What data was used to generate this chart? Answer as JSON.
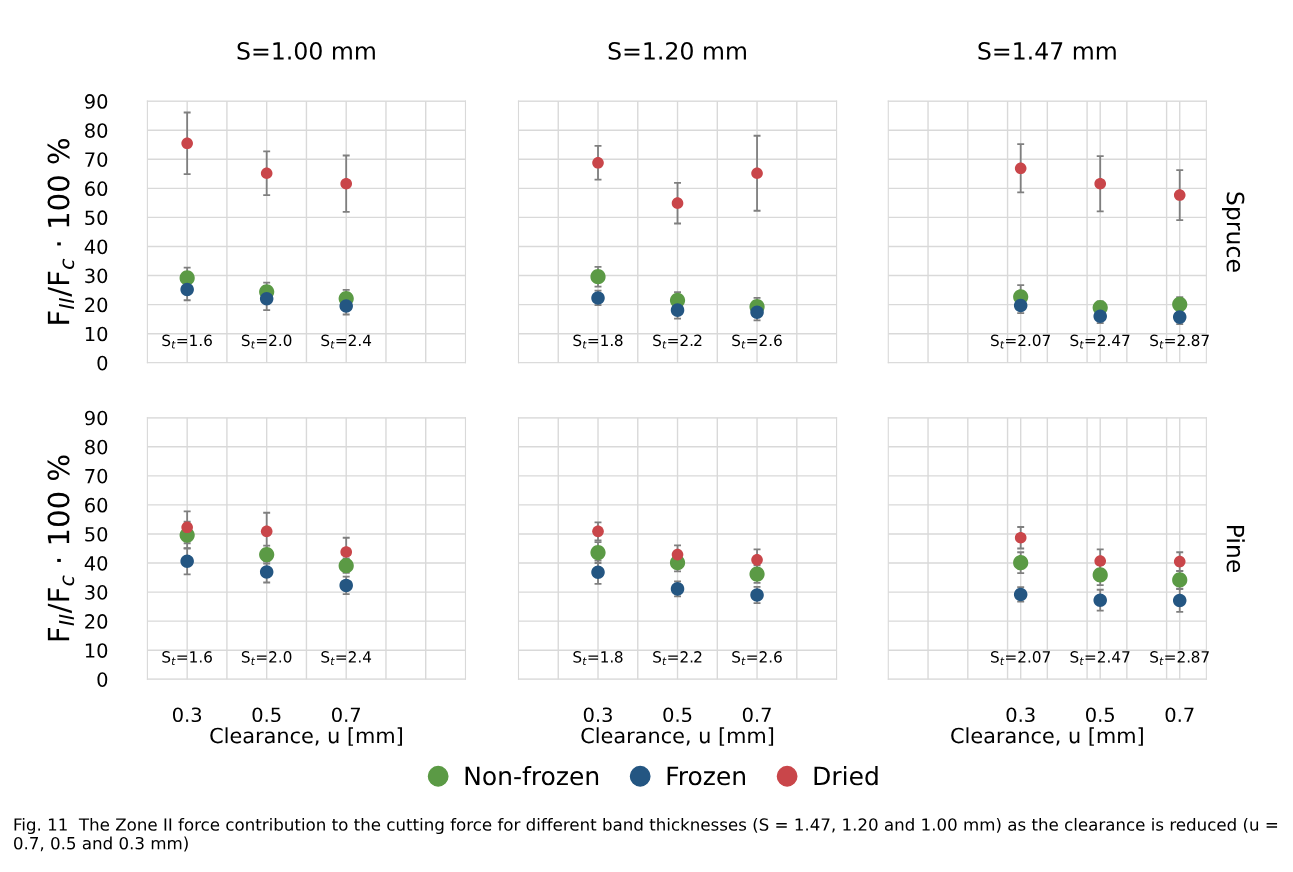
{
  "chart_data": [
    {
      "type": "scatter",
      "title": "S=1.00 mm",
      "ylabel": "F$_{II}$/F$_{c}$ · 100 %",
      "x": [
        0.3,
        0.5,
        0.7
      ],
      "xlim": [
        0.2,
        1.0
      ],
      "xticks": [
        0.3,
        {
          "value": 0.4,
          "label": null
        },
        0.5,
        {
          "value": 0.6,
          "label": null
        },
        0.7,
        {
          "value": 0.8,
          "label": null
        },
        {
          "value": 0.9,
          "label": null
        }
      ],
      "ylim": [
        0,
        90
      ],
      "yticks": [
        0,
        10,
        20,
        30,
        40,
        50,
        60,
        70,
        80,
        90
      ],
      "grid": true,
      "marker": "circle",
      "tick_labels": "y",
      "legend": "bottom",
      "series": [
        {
          "name": "Non-frozen",
          "color": "#5b9a45",
          "values": [
            29.2,
            24.4,
            22.1
          ],
          "errors": [
            3.5,
            3.2,
            3.0
          ]
        },
        {
          "name": "Frozen",
          "color": "#245682",
          "values": [
            25.2,
            22.0,
            19.5
          ],
          "errors": [
            3.7,
            3.9,
            2.9
          ]
        },
        {
          "name": "Dried",
          "color": "#c9464a",
          "values": [
            75.5,
            65.2,
            61.6
          ],
          "errors": [
            10.6,
            7.5,
            9.7
          ]
        }
      ],
      "annotations": [
        "S$_{t}$=1.6",
        "S$_{t}$=2.0",
        "S$_{t}$=2.4"
      ]
    },
    {
      "type": "scatter",
      "title": "S=1.20 mm",
      "x": [
        0.3,
        0.5,
        0.7
      ],
      "xlim": [
        0.1,
        0.9
      ],
      "xticks": [
        {
          "value": 0.2,
          "label": null
        },
        0.3,
        {
          "value": 0.4,
          "label": null
        },
        0.5,
        {
          "value": 0.6,
          "label": null
        },
        0.7,
        {
          "value": 0.8,
          "label": null
        }
      ],
      "ylim": [
        0,
        90
      ],
      "yticks": [
        0,
        10,
        20,
        30,
        40,
        50,
        60,
        70,
        80,
        90
      ],
      "grid": true,
      "marker": "circle",
      "tick_labels": false,
      "legend": "bottom",
      "series": [
        {
          "name": "Non-frozen",
          "color": "#5b9a45",
          "values": [
            29.6,
            21.5,
            19.3
          ],
          "errors": [
            3.4,
            2.8,
            3.0
          ]
        },
        {
          "name": "Frozen",
          "color": "#245682",
          "values": [
            22.3,
            18.1,
            17.4
          ],
          "errors": [
            2.5,
            2.9,
            2.8
          ]
        },
        {
          "name": "Dried",
          "color": "#c9464a",
          "values": [
            68.8,
            54.9,
            65.2
          ],
          "errors": [
            5.8,
            7.0,
            12.9
          ]
        }
      ],
      "annotations": [
        "S$_{t}$=1.8",
        "S$_{t}$=2.2",
        "S$_{t}$=2.6"
      ]
    },
    {
      "type": "scatter",
      "title": "S=1.47 mm",
      "y2label": "Spruce",
      "x": [
        0.3,
        0.5,
        0.7
      ],
      "xlim": [
        -0.033,
        0.767
      ],
      "xticks": [
        {
          "value": 0.067,
          "label": null
        },
        {
          "value": 0.167,
          "label": null
        },
        {
          "value": 0.267,
          "label": null
        },
        0.3,
        {
          "value": 0.367,
          "label": null
        },
        {
          "value": 0.467,
          "label": null
        },
        0.5,
        {
          "value": 0.567,
          "label": null
        },
        {
          "value": 0.667,
          "label": null
        },
        0.7
      ],
      "ylim": [
        0,
        90
      ],
      "yticks": [
        0,
        10,
        20,
        30,
        40,
        50,
        60,
        70,
        80,
        90
      ],
      "grid": true,
      "marker": "circle",
      "tick_labels": false,
      "legend": "bottom",
      "series": [
        {
          "name": "Non-frozen",
          "color": "#5b9a45",
          "values": [
            22.7,
            19.0,
            20.1
          ],
          "errors": [
            4.0,
            2.1,
            2.5
          ]
        },
        {
          "name": "Frozen",
          "color": "#245682",
          "values": [
            19.7,
            16.0,
            15.7
          ],
          "errors": [
            2.6,
            2.4,
            2.4
          ]
        },
        {
          "name": "Dried",
          "color": "#c9464a",
          "values": [
            66.9,
            61.6,
            57.7
          ],
          "errors": [
            8.3,
            9.5,
            8.6
          ]
        }
      ],
      "annotations": [
        "S$_{t}$=2.07",
        "S$_{t}$=2.47",
        "S$_{t}$=2.87"
      ]
    },
    {
      "type": "scatter",
      "xlabel": "Clearance, u [mm]",
      "ylabel": "F$_{II}$/F$_{c}$ · 100 %",
      "x": [
        0.3,
        0.5,
        0.7
      ],
      "xlim": [
        0.2,
        1.0
      ],
      "xticks": [
        0.3,
        {
          "value": 0.4,
          "label": null
        },
        0.5,
        {
          "value": 0.6,
          "label": null
        },
        0.7,
        {
          "value": 0.8,
          "label": null
        },
        {
          "value": 0.9,
          "label": null
        }
      ],
      "ylim": [
        0,
        90
      ],
      "yticks": [
        0,
        10,
        20,
        30,
        40,
        50,
        60,
        70,
        80,
        90
      ],
      "grid": true,
      "marker": "circle",
      "legend": "bottom",
      "series": [
        {
          "name": "Non-frozen",
          "color": "#5b9a45",
          "values": [
            49.6,
            42.9,
            39.1
          ],
          "errors": [
            4.6,
            3.1,
            2.5
          ]
        },
        {
          "name": "Frozen",
          "color": "#245682",
          "values": [
            40.6,
            36.9,
            32.3
          ],
          "errors": [
            4.5,
            3.6,
            3.0
          ]
        },
        {
          "name": "Dried",
          "color": "#c9464a",
          "values": [
            52.3,
            50.9,
            43.8
          ],
          "errors": [
            5.5,
            6.4,
            4.9
          ]
        }
      ],
      "annotations": [
        "S$_{t}$=1.6",
        "S$_{t}$=2.0",
        "S$_{t}$=2.4"
      ]
    },
    {
      "type": "scatter",
      "xlabel": "Clearance, u [mm]",
      "x": [
        0.3,
        0.5,
        0.7
      ],
      "xlim": [
        0.1,
        0.9
      ],
      "xticks": [
        {
          "value": 0.2,
          "label": null
        },
        0.3,
        {
          "value": 0.4,
          "label": null
        },
        0.5,
        {
          "value": 0.6,
          "label": null
        },
        0.7,
        {
          "value": 0.8,
          "label": null
        }
      ],
      "ylim": [
        0,
        90
      ],
      "yticks": [
        0,
        10,
        20,
        30,
        40,
        50,
        60,
        70,
        80,
        90
      ],
      "grid": true,
      "marker": "circle",
      "tick_labels": "x",
      "legend": "bottom",
      "series": [
        {
          "name": "Non-frozen",
          "color": "#5b9a45",
          "values": [
            43.6,
            40.1,
            36.2
          ],
          "errors": [
            3.6,
            3.0,
            3.0
          ]
        },
        {
          "name": "Frozen",
          "color": "#245682",
          "values": [
            36.8,
            31.1,
            29.0
          ],
          "errors": [
            4.0,
            2.6,
            2.8
          ]
        },
        {
          "name": "Dried",
          "color": "#c9464a",
          "values": [
            50.9,
            42.9,
            41.1
          ],
          "errors": [
            3.1,
            3.2,
            3.6
          ]
        }
      ],
      "annotations": [
        "S$_{t}$=1.8",
        "S$_{t}$=2.2",
        "S$_{t}$=2.6"
      ]
    },
    {
      "type": "scatter",
      "xlabel": "Clearance, u [mm]",
      "y2label": "Pine",
      "x": [
        0.3,
        0.5,
        0.7
      ],
      "xlim": [
        -0.033,
        0.767
      ],
      "xticks": [
        {
          "value": 0.067,
          "label": null
        },
        {
          "value": 0.167,
          "label": null
        },
        {
          "value": 0.267,
          "label": null
        },
        0.3,
        {
          "value": 0.367,
          "label": null
        },
        {
          "value": 0.467,
          "label": null
        },
        0.5,
        {
          "value": 0.567,
          "label": null
        },
        {
          "value": 0.667,
          "label": null
        },
        0.7
      ],
      "ylim": [
        0,
        90
      ],
      "yticks": [
        0,
        10,
        20,
        30,
        40,
        50,
        60,
        70,
        80,
        90
      ],
      "grid": true,
      "marker": "circle",
      "tick_labels": "x",
      "legend": "bottom",
      "series": [
        {
          "name": "Non-frozen",
          "color": "#5b9a45",
          "values": [
            40.1,
            35.9,
            34.2
          ],
          "errors": [
            3.6,
            3.5,
            3.0
          ]
        },
        {
          "name": "Frozen",
          "color": "#245682",
          "values": [
            29.2,
            27.2,
            27.1
          ],
          "errors": [
            2.5,
            3.6,
            3.9
          ]
        },
        {
          "name": "Dried",
          "color": "#c9464a",
          "values": [
            48.7,
            40.7,
            40.5
          ],
          "errors": [
            3.7,
            4.0,
            3.2
          ]
        }
      ],
      "annotations": [
        "S$_{t}$=2.07",
        "S$_{t}$=2.47",
        "S$_{t}$=2.87",
        "Fig. 11  The Zone II force contribution to the cutting force for different band thicknesses (S = 1.47, 1.20 and 1.00 mm) as the clearance is reduced (u = 0.7, 0.5 and 0.3 mm)"
      ]
    }
  ]
}
